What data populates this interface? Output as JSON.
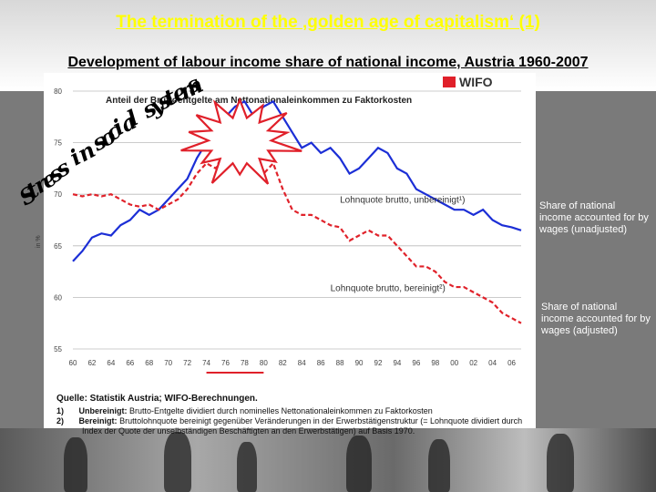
{
  "slide": {
    "title": "The termination of the ‚golden age of capitalism‘ (1)",
    "subtitle": "Development of labour income share of national income, Austria 1960-2007",
    "stress_letters": [
      "S",
      "t",
      "r",
      "e",
      "s",
      "s",
      " ",
      "i",
      "n",
      " ",
      "s",
      "o",
      "c",
      "i",
      "a",
      "l",
      " ",
      "s",
      "y",
      "s",
      "t",
      "e",
      "m",
      "s"
    ],
    "side_label_unadjusted": "Share of national income accounted for by wages (unadjusted)",
    "side_label_adjusted": "Share of national income accounted for by wages (adjusted)",
    "brand": "WIFO",
    "source_title": "Quelle: Statistik Austria; WIFO-Berechnungen.",
    "note1_num": "1)",
    "note1_label": "Unbereinigt:",
    "note1_text": "Brutto-Entgelte dividiert durch nominelles Nettonationaleinkommen zu Faktorkosten",
    "note2_num": "2)",
    "note2_label": "Bereinigt:",
    "note2_text": "Bruttolohnquote bereinigt gegenüber Veränderungen in der Erwerbstätigenstruktur (= Lohnquote dividiert durch",
    "note2_text2": "Index der Quote der unselbständigen Beschäftigten an den Erwerbstätigen) auf Basis 1970.",
    "colors": {
      "title": "#ffff00",
      "unadjusted": "#1a2fd6",
      "adjusted": "#e0202a",
      "burst": "#e0202a"
    }
  },
  "chart_data": {
    "type": "line",
    "title": "Anteil der Bruttoentgelte am Nettonationaleinkommen zu Faktorkosten",
    "ylabel": "in %",
    "ylim": [
      55,
      80
    ],
    "yticks": [
      55,
      60,
      65,
      70,
      75,
      80
    ],
    "xlim": [
      1960,
      2007
    ],
    "xtick_labels": [
      "60",
      "62",
      "64",
      "66",
      "68",
      "70",
      "72",
      "74",
      "76",
      "78",
      "80",
      "82",
      "84",
      "86",
      "88",
      "90",
      "92",
      "94",
      "96",
      "98",
      "00",
      "02",
      "04",
      "06"
    ],
    "highlight_years": [
      1974,
      1980
    ],
    "x": [
      1960,
      1961,
      1962,
      1963,
      1964,
      1965,
      1966,
      1967,
      1968,
      1969,
      1970,
      1971,
      1972,
      1973,
      1974,
      1975,
      1976,
      1977,
      1978,
      1979,
      1980,
      1981,
      1982,
      1983,
      1984,
      1985,
      1986,
      1987,
      1988,
      1989,
      1990,
      1991,
      1992,
      1993,
      1994,
      1995,
      1996,
      1997,
      1998,
      1999,
      2000,
      2001,
      2002,
      2003,
      2004,
      2005,
      2006,
      2007
    ],
    "series": [
      {
        "name": "Lohnquote brutto, unbereinigt",
        "annotation": "Lohnquote brutto, unbereinigt¹)",
        "values": [
          63.5,
          64.5,
          65.8,
          66.2,
          66.0,
          67.0,
          67.5,
          68.5,
          68.0,
          68.5,
          69.5,
          70.5,
          71.5,
          73.5,
          75.0,
          76.0,
          77.5,
          78.5,
          79.0,
          77.5,
          78.5,
          79.0,
          77.5,
          76.0,
          74.5,
          75.0,
          74.0,
          74.5,
          73.5,
          72.0,
          72.5,
          73.5,
          74.5,
          74.0,
          72.5,
          72.0,
          70.5,
          70.0,
          69.5,
          69.0,
          68.5,
          68.5,
          68.0,
          68.5,
          67.5,
          67.0,
          66.8,
          66.5
        ]
      },
      {
        "name": "Lohnquote brutto, bereinigt",
        "annotation": "Lohnquote brutto, bereinigt²)",
        "values": [
          70.0,
          69.8,
          70.0,
          69.8,
          70.0,
          69.5,
          69.0,
          68.8,
          69.0,
          68.5,
          69.0,
          69.5,
          70.5,
          72.0,
          73.0,
          72.5,
          74.5,
          74.0,
          73.0,
          73.5,
          72.0,
          73.0,
          70.5,
          68.5,
          68.0,
          68.0,
          67.5,
          67.0,
          66.8,
          65.5,
          66.0,
          66.5,
          66.0,
          66.0,
          65.0,
          64.0,
          63.0,
          63.0,
          62.5,
          61.5,
          61.0,
          61.0,
          60.5,
          60.0,
          59.5,
          58.5,
          58.0,
          57.5
        ]
      }
    ]
  }
}
